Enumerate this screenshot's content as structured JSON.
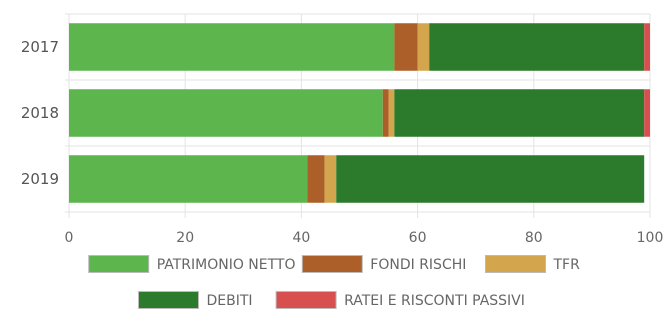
{
  "chart_data": {
    "type": "bar",
    "orientation": "horizontal",
    "stacked": true,
    "categories": [
      "2017",
      "2018",
      "2019"
    ],
    "series": [
      {
        "name": "PATRIMONIO NETTO",
        "color": "#5cb54d",
        "values": [
          56,
          54,
          41
        ]
      },
      {
        "name": "FONDI RISCHI",
        "color": "#ad5f29",
        "values": [
          4,
          1,
          3
        ]
      },
      {
        "name": "TFR",
        "color": "#d3a64e",
        "values": [
          2,
          1,
          2
        ]
      },
      {
        "name": "DEBITI",
        "color": "#2c7b2c",
        "values": [
          37,
          43,
          53
        ]
      },
      {
        "name": "RATEI E RISCONTI PASSIVI",
        "color": "#d84f4f",
        "values": [
          1,
          1,
          0
        ]
      }
    ],
    "xlim": [
      0,
      100
    ],
    "xticks": [
      "0",
      "20",
      "40",
      "60",
      "80",
      "100"
    ],
    "grid": true,
    "legend_position": "bottom"
  }
}
